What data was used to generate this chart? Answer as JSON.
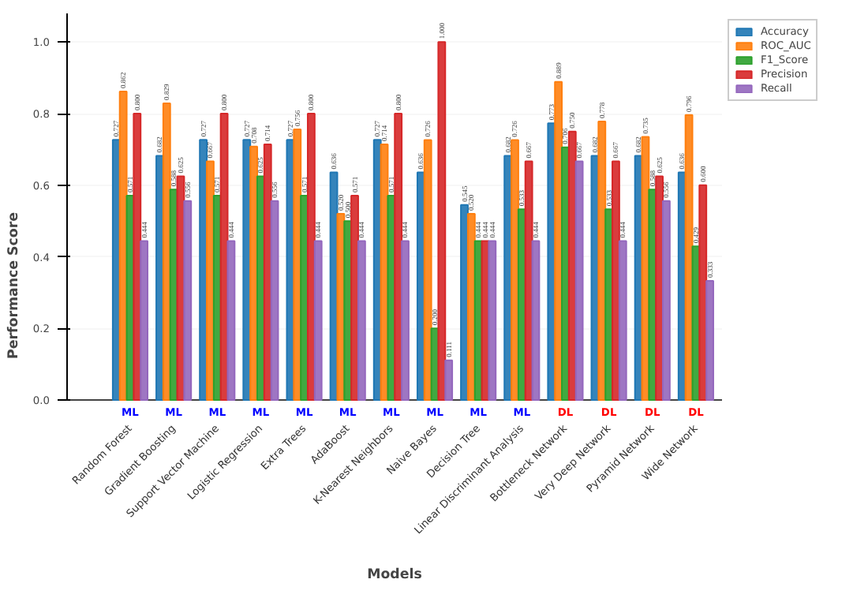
{
  "chart_data": {
    "type": "bar",
    "xlabel": "Models",
    "ylabel": "Performance Score",
    "categories": [
      "Random Forest",
      "Gradient Boosting",
      "Support Vector Machine",
      "Logistic Regression",
      "Extra Trees",
      "AdaBoost",
      "K-Nearest Neighbors",
      "Naive Bayes",
      "Decision Tree",
      "Linear Discriminant Analysis",
      "Bottleneck Network",
      "Very Deep Network",
      "Pyramid Network",
      "Wide Network"
    ],
    "series": [
      {
        "name": "Accuracy",
        "color": "#1f77b4",
        "values": [
          0.727,
          0.682,
          0.727,
          0.727,
          0.727,
          0.636,
          0.727,
          0.636,
          0.545,
          0.682,
          0.773,
          0.682,
          0.682,
          0.636
        ],
        "value_labels": [
          "0.727",
          "0.682",
          "0.727",
          "0.727",
          "0.727",
          "0.636",
          "0.727",
          "0.636",
          "0.545",
          "0.682",
          "0.773",
          "0.682",
          "0.682",
          "0.636"
        ]
      },
      {
        "name": "ROC_AUC",
        "color": "#ff7f0e",
        "values": [
          0.862,
          0.829,
          0.667,
          0.708,
          0.756,
          0.52,
          0.714,
          0.726,
          0.52,
          0.726,
          0.889,
          0.778,
          0.735,
          0.796
        ],
        "value_labels": [
          "0.862",
          "0.829",
          "0.667",
          "0.708",
          "0.756",
          "0.520",
          "0.714",
          "0.726",
          "0.520",
          "0.726",
          "0.889",
          "0.778",
          "0.735",
          "0.796"
        ]
      },
      {
        "name": "F1_Score",
        "color": "#2ca02c",
        "values": [
          0.571,
          0.588,
          0.571,
          0.625,
          0.571,
          0.5,
          0.571,
          0.2,
          0.444,
          0.533,
          0.706,
          0.533,
          0.588,
          0.429
        ],
        "value_labels": [
          "0.571",
          "0.588",
          "0.571",
          "0.625",
          "0.571",
          "0.500",
          "0.571",
          "0.200",
          "0.444",
          "0.533",
          "0.706",
          "0.533",
          "0.588",
          "0.429"
        ]
      },
      {
        "name": "Precision",
        "color": "#d62728",
        "values": [
          0.8,
          0.625,
          0.8,
          0.714,
          0.8,
          0.571,
          0.8,
          1.0,
          0.444,
          0.667,
          0.75,
          0.667,
          0.625,
          0.6
        ],
        "value_labels": [
          "0.800",
          "0.625",
          "0.800",
          "0.714",
          "0.800",
          "0.571",
          "0.800",
          "1.000",
          "0.444",
          "0.667",
          "0.750",
          "0.667",
          "0.625",
          "0.600"
        ]
      },
      {
        "name": "Recall",
        "color": "#9467bd",
        "values": [
          0.444,
          0.556,
          0.444,
          0.556,
          0.444,
          0.444,
          0.444,
          0.111,
          0.444,
          0.444,
          0.667,
          0.444,
          0.556,
          0.333
        ],
        "value_labels": [
          "0.444",
          "0.556",
          "0.444",
          "0.556",
          "0.444",
          "0.444",
          "0.444",
          "0.111",
          "0.444",
          "0.444",
          "0.667",
          "0.444",
          "0.556",
          "0.333"
        ]
      }
    ],
    "annotations": [
      "ML",
      "ML",
      "ML",
      "ML",
      "ML",
      "ML",
      "ML",
      "ML",
      "ML",
      "ML",
      "DL",
      "DL",
      "DL",
      "DL"
    ],
    "ylim": [
      0,
      1.08
    ],
    "yticks": [
      {
        "value": 0,
        "label": "0.0"
      },
      {
        "value": 0.2,
        "label": "0.2"
      },
      {
        "value": 0.4,
        "label": "0.4"
      },
      {
        "value": 0.6,
        "label": "0.6"
      },
      {
        "value": 0.8,
        "label": "0.8"
      },
      {
        "value": 1.0,
        "label": "1.0"
      }
    ],
    "grid": "y",
    "legend": "top right"
  }
}
